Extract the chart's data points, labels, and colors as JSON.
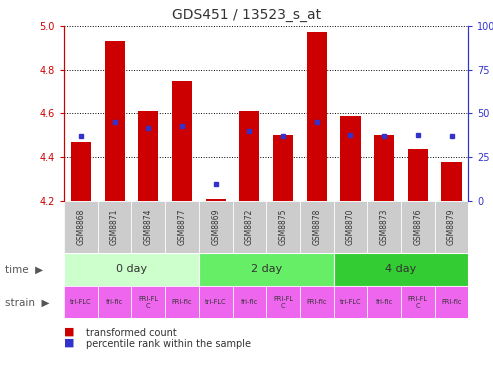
{
  "title": "GDS451 / 13523_s_at",
  "samples": [
    "GSM8868",
    "GSM8871",
    "GSM8874",
    "GSM8877",
    "GSM8869",
    "GSM8872",
    "GSM8875",
    "GSM8878",
    "GSM8870",
    "GSM8873",
    "GSM8876",
    "GSM8879"
  ],
  "transformed_counts": [
    4.47,
    4.93,
    4.61,
    4.75,
    4.21,
    4.61,
    4.5,
    4.97,
    4.59,
    4.5,
    4.44,
    4.38
  ],
  "percentile_ranks": [
    37,
    45,
    42,
    43,
    10,
    40,
    37,
    45,
    38,
    37,
    38,
    37
  ],
  "ylim_left": [
    4.2,
    5.0
  ],
  "ylim_right": [
    0,
    100
  ],
  "yticks_left": [
    4.2,
    4.4,
    4.6,
    4.8,
    5.0
  ],
  "yticks_right": [
    0,
    25,
    50,
    75,
    100
  ],
  "ytick_labels_right": [
    "0",
    "25",
    "50",
    "75",
    "100%"
  ],
  "bar_color": "#CC0000",
  "dot_color": "#3333CC",
  "baseline": 4.2,
  "time_groups": [
    {
      "label": "0 day",
      "start": 0,
      "end": 4,
      "color": "#CCFFCC"
    },
    {
      "label": "2 day",
      "start": 4,
      "end": 8,
      "color": "#66EE66"
    },
    {
      "label": "4 day",
      "start": 8,
      "end": 12,
      "color": "#33CC33"
    }
  ],
  "strain_labels": [
    "tri-FLC",
    "fri-flc",
    "FRI-FL\nC",
    "FRl-flc",
    "tri-FLC",
    "fri-flc",
    "FRI-FL\nC",
    "FRl-flc",
    "tri-FLC",
    "fri-flc",
    "FRI-FL\nC",
    "FRl-flc"
  ],
  "strain_color": "#EE66EE",
  "bg_color": "#FFFFFF",
  "grid_color": "#000000",
  "left_axis_color": "#CC0000",
  "right_axis_color": "#3333CC",
  "xtick_bg_color": "#CCCCCC",
  "fig_width": 4.93,
  "fig_height": 3.66,
  "dpi": 100
}
